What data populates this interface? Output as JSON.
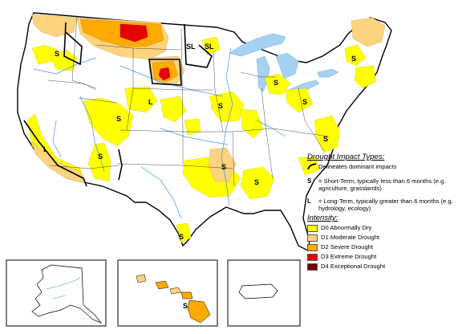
{
  "map": {
    "state_labels": [
      {
        "text": "S",
        "region": "pacific-northwest"
      },
      {
        "text": "SL",
        "region": "montana"
      },
      {
        "text": "SL",
        "region": "minnesota"
      },
      {
        "text": "L",
        "region": "wyoming"
      },
      {
        "text": "S",
        "region": "colorado-utah"
      },
      {
        "text": "L",
        "region": "california"
      },
      {
        "text": "S",
        "region": "arizona"
      },
      {
        "text": "S",
        "region": "iowa-illinois"
      },
      {
        "text": "S",
        "region": "michigan"
      },
      {
        "text": "S",
        "region": "new-england"
      },
      {
        "text": "S",
        "region": "ohio-pennsylvania"
      },
      {
        "text": "S",
        "region": "virginia-carolinas"
      },
      {
        "text": "S",
        "region": "arkansas-louisiana"
      },
      {
        "text": "S",
        "region": "mississippi-alabama"
      },
      {
        "text": "S",
        "region": "south-texas"
      },
      {
        "text": "S",
        "region": "hawaii"
      }
    ],
    "insets": [
      "alaska",
      "hawaii",
      "puerto-rico"
    ]
  },
  "legend": {
    "impact_title": "Drought Impact Types:",
    "delineates": "Delineates dominant impacts",
    "s_symbol": "S",
    "s_desc": "= Short-Term, typically less than 6 months (e.g. agriculture, grasslands)",
    "l_symbol": "L",
    "l_desc": "= Long-Term, typically greater than 6 months (e.g. hydrology, ecology)",
    "intensity_title": "Intensity:",
    "items": [
      {
        "label": "D0 Abnormally Dry",
        "color": "#ffff00"
      },
      {
        "label": "D1 Moderate Drought",
        "color": "#fcd37f"
      },
      {
        "label": "D2 Severe Drought",
        "color": "#ffaa00"
      },
      {
        "label": "D3 Extreme Drought",
        "color": "#e60000"
      },
      {
        "label": "D4 Exceptional Drought",
        "color": "#730000"
      }
    ]
  }
}
